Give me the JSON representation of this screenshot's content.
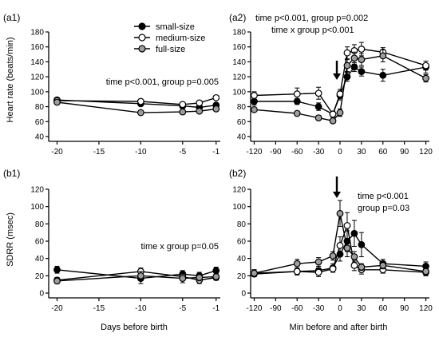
{
  "legend": {
    "entries": [
      {
        "label": "small-size",
        "marker": "filled",
        "color": "#000000"
      },
      {
        "label": "medium-size",
        "marker": "open",
        "color": "#ffffff"
      },
      {
        "label": "full-size",
        "marker": "gray",
        "color": "#9e9e9e"
      }
    ]
  },
  "chart_data": [
    {
      "panel": "(a1)",
      "type": "line",
      "ylabel": "Heart rate (beats/min)",
      "xlabel": "",
      "ylim": [
        40,
        180
      ],
      "yticks": [
        40,
        60,
        80,
        100,
        120,
        140,
        160,
        180
      ],
      "xlim": [
        -21,
        -0.5
      ],
      "xticks": [
        -20,
        -15,
        -10,
        -5,
        -1
      ],
      "annotations": [
        "time p<0.001, group p=0.005"
      ],
      "series": [
        {
          "name": "small-size",
          "x": [
            -20,
            -10,
            -5,
            -3,
            -1
          ],
          "y": [
            89,
            84,
            81,
            79,
            82
          ],
          "err": [
            3,
            3,
            3,
            3,
            3
          ]
        },
        {
          "name": "medium-size",
          "x": [
            -20,
            -10,
            -5,
            -3,
            -1
          ],
          "y": [
            88,
            87,
            83,
            85,
            92
          ],
          "err": [
            3,
            3,
            3,
            3,
            3
          ]
        },
        {
          "name": "full-size",
          "x": [
            -20,
            -10,
            -5,
            -3,
            -1
          ],
          "y": [
            86,
            72,
            73,
            74,
            77
          ],
          "err": [
            3,
            3,
            3,
            3,
            3
          ]
        }
      ]
    },
    {
      "panel": "(a2)",
      "type": "line",
      "ylabel": "",
      "xlabel": "",
      "ylim": [
        40,
        180
      ],
      "yticks": [
        40,
        60,
        80,
        100,
        120,
        140,
        160,
        180
      ],
      "xlim": [
        -125,
        125
      ],
      "xticks": [
        -120,
        -90,
        -60,
        -30,
        0,
        30,
        60,
        90,
        120
      ],
      "annotations": [
        "time p<0.001, group p=0.002",
        "time x group p<0.001"
      ],
      "arrow_at_x": 0,
      "series": [
        {
          "name": "small-size",
          "x": [
            -120,
            -60,
            -30,
            -10,
            0,
            10,
            20,
            30,
            60,
            120
          ],
          "y": [
            87,
            87,
            80,
            70,
            95,
            120,
            133,
            127,
            122,
            133
          ],
          "err": [
            5,
            4,
            5,
            4,
            6,
            6,
            6,
            6,
            8,
            8
          ]
        },
        {
          "name": "medium-size",
          "x": [
            -120,
            -60,
            -30,
            -10,
            0,
            10,
            20,
            30,
            60,
            120
          ],
          "y": [
            95,
            97,
            98,
            70,
            97,
            152,
            155,
            157,
            153,
            135
          ],
          "err": [
            5,
            8,
            8,
            4,
            6,
            8,
            8,
            9,
            6,
            6
          ]
        },
        {
          "name": "full-size",
          "x": [
            -120,
            -60,
            -30,
            -10,
            0,
            10,
            20,
            30,
            60,
            120
          ],
          "y": [
            76,
            71,
            65,
            61,
            72,
            135,
            145,
            143,
            148,
            118
          ],
          "err": [
            3,
            3,
            3,
            3,
            5,
            8,
            8,
            8,
            8,
            5
          ]
        }
      ]
    },
    {
      "panel": "(b1)",
      "type": "line",
      "ylabel": "SDRR (msec)",
      "xlabel": "Days before birth",
      "ylim": [
        0,
        120
      ],
      "yticks": [
        0,
        20,
        40,
        60,
        80,
        100,
        120
      ],
      "xlim": [
        -21,
        -0.5
      ],
      "xticks": [
        -20,
        -15,
        -10,
        -5,
        -1
      ],
      "annotations": [
        "time x group p=0.05"
      ],
      "series": [
        {
          "name": "small-size",
          "x": [
            -20,
            -10,
            -5,
            -3,
            -1
          ],
          "y": [
            27,
            17,
            22,
            20,
            26
          ],
          "err": [
            4,
            6,
            4,
            4,
            4
          ]
        },
        {
          "name": "medium-size",
          "x": [
            -20,
            -10,
            -5,
            -3,
            -1
          ],
          "y": [
            15,
            25,
            19,
            15,
            18
          ],
          "err": [
            3,
            4,
            4,
            4,
            3
          ]
        },
        {
          "name": "full-size",
          "x": [
            -20,
            -10,
            -5,
            -3,
            -1
          ],
          "y": [
            14,
            20,
            17,
            18,
            19
          ],
          "err": [
            3,
            5,
            5,
            4,
            4
          ]
        }
      ]
    },
    {
      "panel": "(b2)",
      "type": "line",
      "ylabel": "",
      "xlabel": "Min before and after birth",
      "ylim": [
        0,
        120
      ],
      "yticks": [
        0,
        20,
        40,
        60,
        80,
        100,
        120
      ],
      "xlim": [
        -125,
        125
      ],
      "xticks": [
        -120,
        -90,
        -60,
        -30,
        0,
        30,
        60,
        90,
        120
      ],
      "annotations": [
        "time p<0.001",
        "group p=0.03"
      ],
      "arrow_at_x": 0,
      "series": [
        {
          "name": "small-size",
          "x": [
            -120,
            -60,
            -30,
            -10,
            0,
            10,
            20,
            30,
            60,
            120
          ],
          "y": [
            23,
            25,
            26,
            29,
            45,
            60,
            69,
            56,
            34,
            31
          ],
          "err": [
            4,
            4,
            5,
            5,
            8,
            12,
            15,
            14,
            5,
            5
          ]
        },
        {
          "name": "medium-size",
          "x": [
            -120,
            -60,
            -30,
            -10,
            0,
            10,
            20,
            30,
            60,
            120
          ],
          "y": [
            22,
            25,
            24,
            28,
            55,
            78,
            32,
            27,
            27,
            24
          ],
          "err": [
            3,
            4,
            5,
            4,
            10,
            15,
            6,
            5,
            4,
            4
          ]
        },
        {
          "name": "full-size",
          "x": [
            -120,
            -60,
            -30,
            -10,
            0,
            10,
            20,
            30,
            60,
            120
          ],
          "y": [
            23,
            34,
            36,
            43,
            92,
            52,
            42,
            30,
            32,
            25
          ],
          "err": [
            4,
            5,
            5,
            5,
            15,
            10,
            6,
            4,
            4,
            4
          ]
        }
      ]
    }
  ]
}
